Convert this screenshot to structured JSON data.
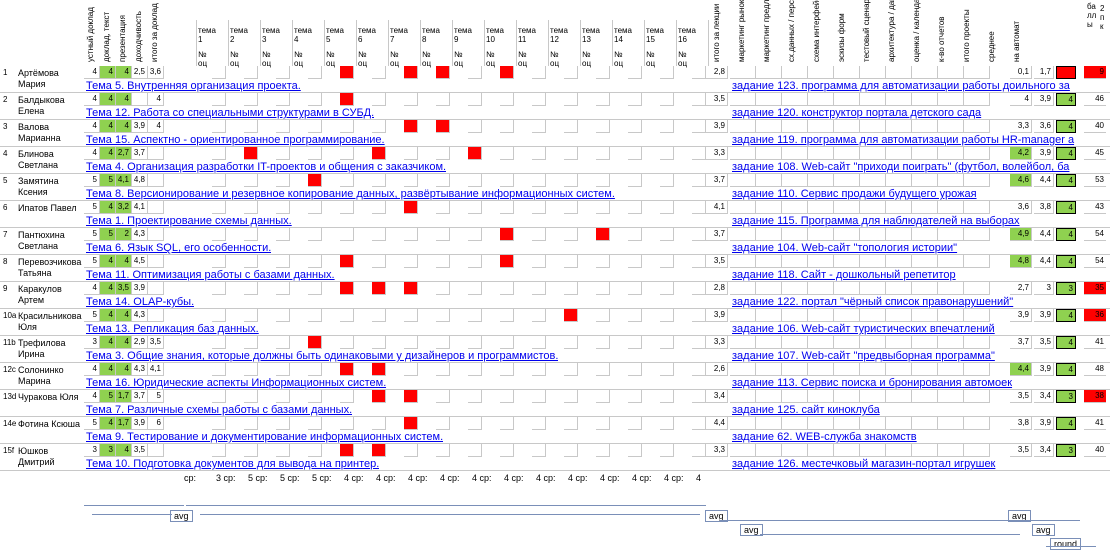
{
  "header": {
    "verticals_left": [
      "устный доклад",
      "доклад, текст",
      "презентация",
      "доходчивость",
      "итого за доклад"
    ],
    "topics": [
      {
        "title": "тема 1",
        "sub": "№ оц"
      },
      {
        "title": "тема 2",
        "sub": "№ оц"
      },
      {
        "title": "тема 3",
        "sub": "№ оц"
      },
      {
        "title": "тема 4",
        "sub": "№ оц"
      },
      {
        "title": "тема 5",
        "sub": "№ оц"
      },
      {
        "title": "тема 6",
        "sub": "№ оц"
      },
      {
        "title": "тема 7",
        "sub": "№ оц"
      },
      {
        "title": "тема 8",
        "sub": "№ оц"
      },
      {
        "title": "тема 9",
        "sub": "№ оц"
      },
      {
        "title": "тема 10",
        "sub": "№ оц"
      },
      {
        "title": "тема 11",
        "sub": "№ оц"
      },
      {
        "title": "тема 12",
        "sub": "№ оц"
      },
      {
        "title": "тема 13",
        "sub": "№ оц"
      },
      {
        "title": "тема 14",
        "sub": "№ оц"
      },
      {
        "title": "тема 15",
        "sub": "№ оц"
      },
      {
        "title": "тема 16",
        "sub": "№ оц"
      }
    ],
    "verticals_right": [
      "итого за лекции",
      "маркетинг рынок",
      "маркетинг предложение",
      "сх.данных / персонажи",
      "схема интерфейса",
      "эскизы форм",
      "тестовый сценарий",
      "архитектура / данные",
      "оценка / календар.",
      "к-во отчетов",
      "итого проекты",
      "среднее",
      "на автомат"
    ],
    "last_col": "ба лл ы",
    "last_col2": "2 п к"
  },
  "rows": [
    {
      "idx": "1",
      "name": "Артёмова Мария",
      "oral": "4",
      "text": "4",
      "pres": "4",
      "clar": "2,5",
      "total": "3,6",
      "lect": "2,8",
      "proj": "0,1",
      "avg": "1,7",
      "auto": "",
      "score": "9",
      "topic": "Тема 5. Внутренняя организация проекта.",
      "task": "задание 123. программа для автоматизации работы доильного за"
    },
    {
      "idx": "2",
      "name": "Балдыкова Елена",
      "oral": "4",
      "text": "4",
      "pres": "4",
      "clar": "",
      "total": "4",
      "lect": "3,5",
      "proj": "4",
      "avg": "3,9",
      "auto": "4",
      "score": "46",
      "topic": "Тема 12. Работа со специальными структурами в СУБД.",
      "task": "задание 120. конструктор портала детского сада"
    },
    {
      "idx": "3",
      "name": "Валова Марианна",
      "oral": "4",
      "text": "4",
      "pres": "4",
      "clar": "3,9",
      "total": "4",
      "lect": "3,9",
      "proj": "3,3",
      "avg": "3,6",
      "auto": "4",
      "score": "40",
      "topic": "Тема 15. Аспектно - ориентированное программирование.",
      "task": "задание 119. программа для автоматизации работы HR-manager а"
    },
    {
      "idx": "4",
      "name": "Блинова Светлана",
      "oral": "4",
      "text": "4",
      "pres": "2,7",
      "clar": "3,7",
      "total": "",
      "lect": "3,3",
      "proj": "4,2",
      "avg": "3,9",
      "auto": "4",
      "score": "45",
      "topic": "Тема 4. Организация разработки IT-проектов и общения с заказчиком.",
      "task": "задание 108. Web-сайт \"приходи поиграть\" (футбол, волейбол, ба"
    },
    {
      "idx": "5",
      "name": "Замятина Ксения",
      "oral": "5",
      "text": "5",
      "pres": "4,1",
      "clar": "4,8",
      "total": "",
      "lect": "3,7",
      "proj": "4,6",
      "avg": "4,4",
      "auto": "4",
      "score": "53",
      "topic": "Тема 8. Версионирование и резервное копирование данных, развёртывание информационных систем.",
      "task": "задание 110. Сервис продажи будущего урожая"
    },
    {
      "idx": "6",
      "name": "Ипатов Павел",
      "oral": "5",
      "text": "4",
      "pres": "3,2",
      "clar": "4,1",
      "total": "",
      "lect": "4,1",
      "proj": "3,6",
      "avg": "3,8",
      "auto": "4",
      "score": "43",
      "topic": "Тема 1. Проектирование схемы данных.",
      "task": "задание 115. Программа для наблюдателей на выборах"
    },
    {
      "idx": "7",
      "name": "Пантюхина Светлана",
      "oral": "5",
      "text": "5",
      "pres": "2",
      "clar": "4,3",
      "total": "",
      "lect": "3,7",
      "proj": "4,9",
      "avg": "4,4",
      "auto": "4",
      "score": "54",
      "topic": "Тема 6. Язык SQL, его особенности.",
      "task": "задание 104. Web-сайт \"топология истории\""
    },
    {
      "idx": "8",
      "name": "Перевозчикова Татьяна",
      "oral": "5",
      "text": "4",
      "pres": "4",
      "clar": "4,5",
      "total": "",
      "lect": "3,5",
      "proj": "4,8",
      "avg": "4,4",
      "auto": "4",
      "score": "54",
      "topic": "Тема 11. Оптимизация работы с базами данных.",
      "task": "задание 118. Сайт - дошкольный репетитор"
    },
    {
      "idx": "9",
      "name": "Каракулов Артем",
      "oral": "4",
      "text": "4",
      "pres": "3,5",
      "clar": "3,9",
      "total": "",
      "lect": "2,8",
      "proj": "2,7",
      "avg": "3",
      "auto": "3",
      "score": "35",
      "topic": "Тема 14. OLAP-кубы.",
      "task": "задание 122. портал \"чёрный список правонарушений\""
    },
    {
      "idx": "10",
      "name": "Красильникова Юля",
      "oral": "5",
      "text": "4",
      "pres": "4",
      "clar": "4,3",
      "total": "",
      "lect": "3,9",
      "proj": "3,9",
      "avg": "3,9",
      "auto": "4",
      "score": "36",
      "topic": "Тема 13. Репликация баз данных.",
      "task": "задание 106. Web-сайт туристических впечатлений"
    },
    {
      "idx": "11",
      "name": "Трефилова Ирина",
      "oral": "3",
      "text": "4",
      "pres": "4",
      "clar": "2,9",
      "total": "3,5",
      "lect": "3,3",
      "proj": "3,7",
      "avg": "3,5",
      "auto": "4",
      "score": "41",
      "topic": "Тема 3. Общие знания, которые должны быть одинаковыми у дизайнеров и программистов.",
      "task": "задание 107. Web-сайт \"предвыборная программа\""
    },
    {
      "idx": "12",
      "name": "Солонинко Марина",
      "oral": "4",
      "text": "4",
      "pres": "4",
      "clar": "4,3",
      "total": "4,1",
      "lect": "2,6",
      "proj": "4,4",
      "avg": "3,9",
      "auto": "4",
      "score": "48",
      "topic": "Тема 16. Юридические аспекты Информационных систем.",
      "task": "задание 113. Сервис поиска и бронирования автомоек"
    },
    {
      "idx": "13",
      "name": "Чуракова Юля",
      "oral": "4",
      "text": "5",
      "pres": "1,7",
      "clar": "3,7",
      "total": "5",
      "lect": "3,4",
      "proj": "3,5",
      "avg": "3,4",
      "auto": "3",
      "score": "38",
      "topic": "Тема 7. Различные схемы работы с базами данных.",
      "task": "задание 125. сайт киноклуба"
    },
    {
      "idx": "14",
      "name": "Фотина Ксюша",
      "oral": "5",
      "text": "4",
      "pres": "1,7",
      "clar": "3,9",
      "total": "6",
      "lect": "4,4",
      "proj": "3,8",
      "avg": "3,9",
      "auto": "4",
      "score": "41",
      "topic": "Тема 9. Тестирование и документирование информационных систем.",
      "task": "задание 62. WEB-служба знакомств"
    },
    {
      "idx": "15",
      "name": "Юшков Дмитрий",
      "oral": "3",
      "text": "3",
      "pres": "4",
      "clar": "3,5",
      "total": "",
      "lect": "3,3",
      "proj": "3,5",
      "avg": "3,4",
      "auto": "3",
      "score": "40",
      "topic": "Тема 10. Подготовка документов для вывода на принтер.",
      "task": "задание 126. местечковый магазин-портал игрушек"
    }
  ],
  "row_index_suffix": [
    "",
    "",
    "",
    "",
    "",
    "",
    "",
    "",
    "",
    "a",
    "b",
    "c",
    "d",
    "e",
    "f"
  ],
  "summary": {
    "cells": [
      "ср:",
      "3 ср:",
      "5 ср:",
      "5 ср:",
      "5 ср:",
      "4 ср:",
      "4 ср:",
      "4 ср:",
      "4 ср:",
      "4 ср:",
      "4 ср:",
      "4 ср:",
      "4 ср:",
      "4 ср:",
      "4 ср:",
      "4 ср:",
      "4"
    ]
  },
  "flow": {
    "avg1": "avg",
    "avg2": "avg",
    "avg3": "avg",
    "avg4": "avg",
    "avg5": "avg",
    "round": "round"
  },
  "colors": {
    "green": "#8fd150",
    "red": "#ff0000",
    "link": "#0000ee",
    "grid": "#c8c8c8"
  }
}
